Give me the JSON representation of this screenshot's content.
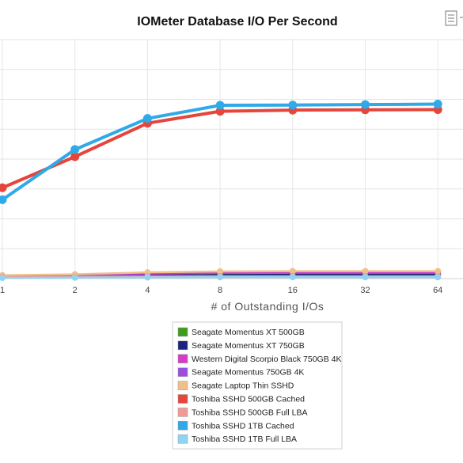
{
  "chart_data": {
    "type": "line",
    "title": "IOMeter Database I/O Per Second",
    "xlabel": "# of Outstanding I/Os",
    "ylabel": "",
    "categories": [
      "1",
      "2",
      "4",
      "8",
      "16",
      "32",
      "64"
    ],
    "ylim": [
      0,
      100
    ],
    "grid": true,
    "legend_position": "bottom",
    "series": [
      {
        "name": "Seagate Momentus XT 500GB",
        "color": "#3f9b1c",
        "values": [
          0.9,
          1.1,
          1.4,
          1.6,
          1.7,
          1.7,
          1.7
        ]
      },
      {
        "name": "Seagate Momentus XT 750GB",
        "color": "#1a237e",
        "values": [
          0.8,
          1.0,
          1.3,
          1.5,
          1.6,
          1.6,
          1.6
        ]
      },
      {
        "name": "Western Digital Scorpio Black 750GB 4K",
        "color": "#d63cc8",
        "values": [
          1.2,
          1.4,
          2.0,
          2.4,
          2.5,
          2.5,
          2.5
        ]
      },
      {
        "name": "Seagate Momentus 750GB 4K",
        "color": "#9b4fe0",
        "values": [
          1.3,
          1.6,
          2.4,
          2.9,
          3.0,
          3.0,
          3.0
        ]
      },
      {
        "name": "Seagate Laptop Thin SSHD",
        "color": "#f0c088",
        "values": [
          1.4,
          1.8,
          2.6,
          3.0,
          3.1,
          3.1,
          3.1
        ]
      },
      {
        "name": "Toshiba SSHD 500GB Cached",
        "color": "#e5453b",
        "values": [
          38,
          51,
          65,
          70,
          70.5,
          70.6,
          70.7
        ]
      },
      {
        "name": "Toshiba SSHD 500GB Full LBA",
        "color": "#f39a94",
        "values": [
          0.6,
          0.7,
          0.9,
          1.0,
          1.0,
          1.0,
          1.0
        ]
      },
      {
        "name": "Toshiba SSHD 1TB Cached",
        "color": "#2fa9e8",
        "values": [
          33,
          54,
          67,
          72.5,
          72.6,
          72.8,
          73
        ]
      },
      {
        "name": "Toshiba SSHD 1TB Full LBA",
        "color": "#8ed4f5",
        "values": [
          0.3,
          0.4,
          0.5,
          0.6,
          0.6,
          0.6,
          0.6
        ]
      }
    ]
  }
}
